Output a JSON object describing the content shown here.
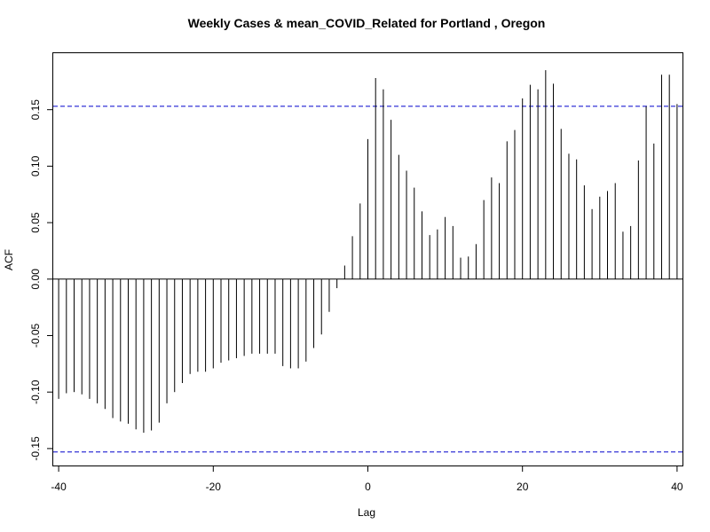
{
  "chart_data": {
    "type": "bar",
    "title": "Weekly Cases & mean_COVID_Related for Portland , Oregon",
    "xlabel": "Lag",
    "ylabel": "ACF",
    "xlim": [
      -40.7,
      40.7
    ],
    "ylim": [
      -0.165,
      0.2
    ],
    "x_ticks": [
      -40,
      -20,
      0,
      20,
      40
    ],
    "x_tick_labels": [
      "-40",
      "-20",
      "0",
      "20",
      "40"
    ],
    "y_ticks": [
      -0.15,
      -0.1,
      -0.05,
      0.0,
      0.05,
      0.1,
      0.15
    ],
    "y_tick_labels": [
      "-0.15",
      "-0.10",
      "-0.05",
      "0.00",
      "0.05",
      "0.10",
      "0.15"
    ],
    "confidence_bound": 0.153,
    "confidence_color": "#0000cc",
    "bar_color": "#000000",
    "grid": false,
    "lags": [
      -40,
      -39,
      -38,
      -37,
      -36,
      -35,
      -34,
      -33,
      -32,
      -31,
      -30,
      -29,
      -28,
      -27,
      -26,
      -25,
      -24,
      -23,
      -22,
      -21,
      -20,
      -19,
      -18,
      -17,
      -16,
      -15,
      -14,
      -13,
      -12,
      -11,
      -10,
      -9,
      -8,
      -7,
      -6,
      -5,
      -4,
      -3,
      -2,
      -1,
      0,
      1,
      2,
      3,
      4,
      5,
      6,
      7,
      8,
      9,
      10,
      11,
      12,
      13,
      14,
      15,
      16,
      17,
      18,
      19,
      20,
      21,
      22,
      23,
      24,
      25,
      26,
      27,
      28,
      29,
      30,
      31,
      32,
      33,
      34,
      35,
      36,
      37,
      38,
      39,
      40
    ],
    "values": [
      -0.106,
      -0.101,
      -0.1,
      -0.102,
      -0.106,
      -0.11,
      -0.115,
      -0.123,
      -0.126,
      -0.128,
      -0.133,
      -0.136,
      -0.134,
      -0.127,
      -0.11,
      -0.1,
      -0.092,
      -0.084,
      -0.082,
      -0.082,
      -0.079,
      -0.074,
      -0.072,
      -0.07,
      -0.068,
      -0.066,
      -0.066,
      -0.066,
      -0.066,
      -0.077,
      -0.079,
      -0.079,
      -0.073,
      -0.061,
      -0.049,
      -0.029,
      -0.008,
      0.012,
      0.038,
      0.067,
      0.124,
      0.178,
      0.168,
      0.141,
      0.11,
      0.096,
      0.081,
      0.06,
      0.039,
      0.044,
      0.055,
      0.047,
      0.019,
      0.02,
      0.031,
      0.07,
      0.09,
      0.085,
      0.122,
      0.132,
      0.16,
      0.172,
      0.168,
      0.185,
      0.173,
      0.133,
      0.111,
      0.106,
      0.083,
      0.062,
      0.073,
      0.078,
      0.085,
      0.042,
      0.047,
      0.105,
      0.153,
      0.12,
      0.181,
      0.181,
      0.155
    ]
  }
}
